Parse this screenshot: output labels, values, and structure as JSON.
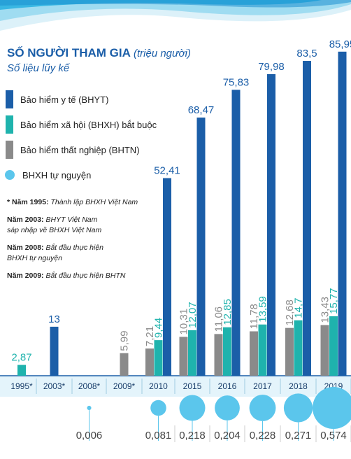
{
  "header": {
    "title_main": "SỐ NGƯỜI THAM GIA",
    "title_unit": "(triệu người)",
    "subtitle": "Số liệu lũy kế"
  },
  "legend": [
    {
      "label": "Bảo hiểm y tế (BHYT)",
      "color": "#1b5ea8",
      "shape": "bar"
    },
    {
      "label": "Bảo hiểm xã hội (BHXH) bắt buộc",
      "color": "#1fb3ad",
      "shape": "bar"
    },
    {
      "label": "Bảo hiểm thất nghiệp (BHTN)",
      "color": "#8a8a8a",
      "shape": "bar"
    },
    {
      "label": "BHXH tự nguyện",
      "color": "#5bc6ec",
      "shape": "circle"
    }
  ],
  "notes": [
    {
      "year": "* Năm 1995:",
      "text": "Thành lập BHXH Việt Nam"
    },
    {
      "year": "Năm 2003:",
      "text": "BHYT Việt Nam sáp nhập về BHXH Việt Nam"
    },
    {
      "year": "Năm 2008:",
      "text": "Bắt đầu thực hiện BHXH tự nguyện"
    },
    {
      "year": "Năm 2009:",
      "text": "Bắt đầu thực hiện BHTN"
    }
  ],
  "chart_data": {
    "type": "bar",
    "title": "SỐ NGƯỜI THAM GIA (triệu người)",
    "subtitle": "Số liệu lũy kế",
    "categories": [
      "1995*",
      "2003*",
      "2008*",
      "2009*",
      "2010",
      "2015",
      "2016",
      "2017",
      "2018",
      "2019"
    ],
    "series": [
      {
        "name": "Bảo hiểm thất nghiệp (BHTN)",
        "color": "#8a8a8a",
        "values": [
          null,
          null,
          null,
          5.99,
          7.21,
          10.31,
          11.06,
          11.78,
          12.68,
          13.43
        ],
        "labels": [
          null,
          null,
          null,
          "5,99",
          "7,21",
          "10,31",
          "11,06",
          "11,78",
          "12,68",
          "13,43"
        ]
      },
      {
        "name": "Bảo hiểm xã hội (BHXH) bắt buộc",
        "color": "#1fb3ad",
        "values": [
          2.87,
          null,
          null,
          null,
          9.44,
          12.07,
          12.85,
          13.59,
          14.7,
          15.77
        ],
        "labels": [
          "2,87",
          null,
          null,
          null,
          "9,44",
          "12,07",
          "12,85",
          "13,59",
          "14,7",
          "15,77"
        ]
      },
      {
        "name": "Bảo hiểm y tế (BHYT)",
        "color": "#1b5ea8",
        "values": [
          null,
          13,
          null,
          null,
          52.41,
          68.47,
          75.83,
          79.98,
          83.5,
          85.95
        ],
        "labels": [
          null,
          "13",
          null,
          null,
          "52,41",
          "68,47",
          "75,83",
          "79,98",
          "83,5",
          "85,95"
        ]
      }
    ],
    "bubbles": {
      "name": "BHXH tự nguyện",
      "color": "#5bc6ec",
      "values": [
        null,
        null,
        0.006,
        null,
        0.081,
        0.218,
        0.204,
        0.228,
        0.271,
        0.574
      ],
      "labels": [
        null,
        null,
        "0,006",
        null,
        "0,081",
        "0,218",
        "0,204",
        "0,228",
        "0,271",
        "0,574"
      ]
    },
    "ylim": [
      0,
      90
    ],
    "grid": false
  }
}
